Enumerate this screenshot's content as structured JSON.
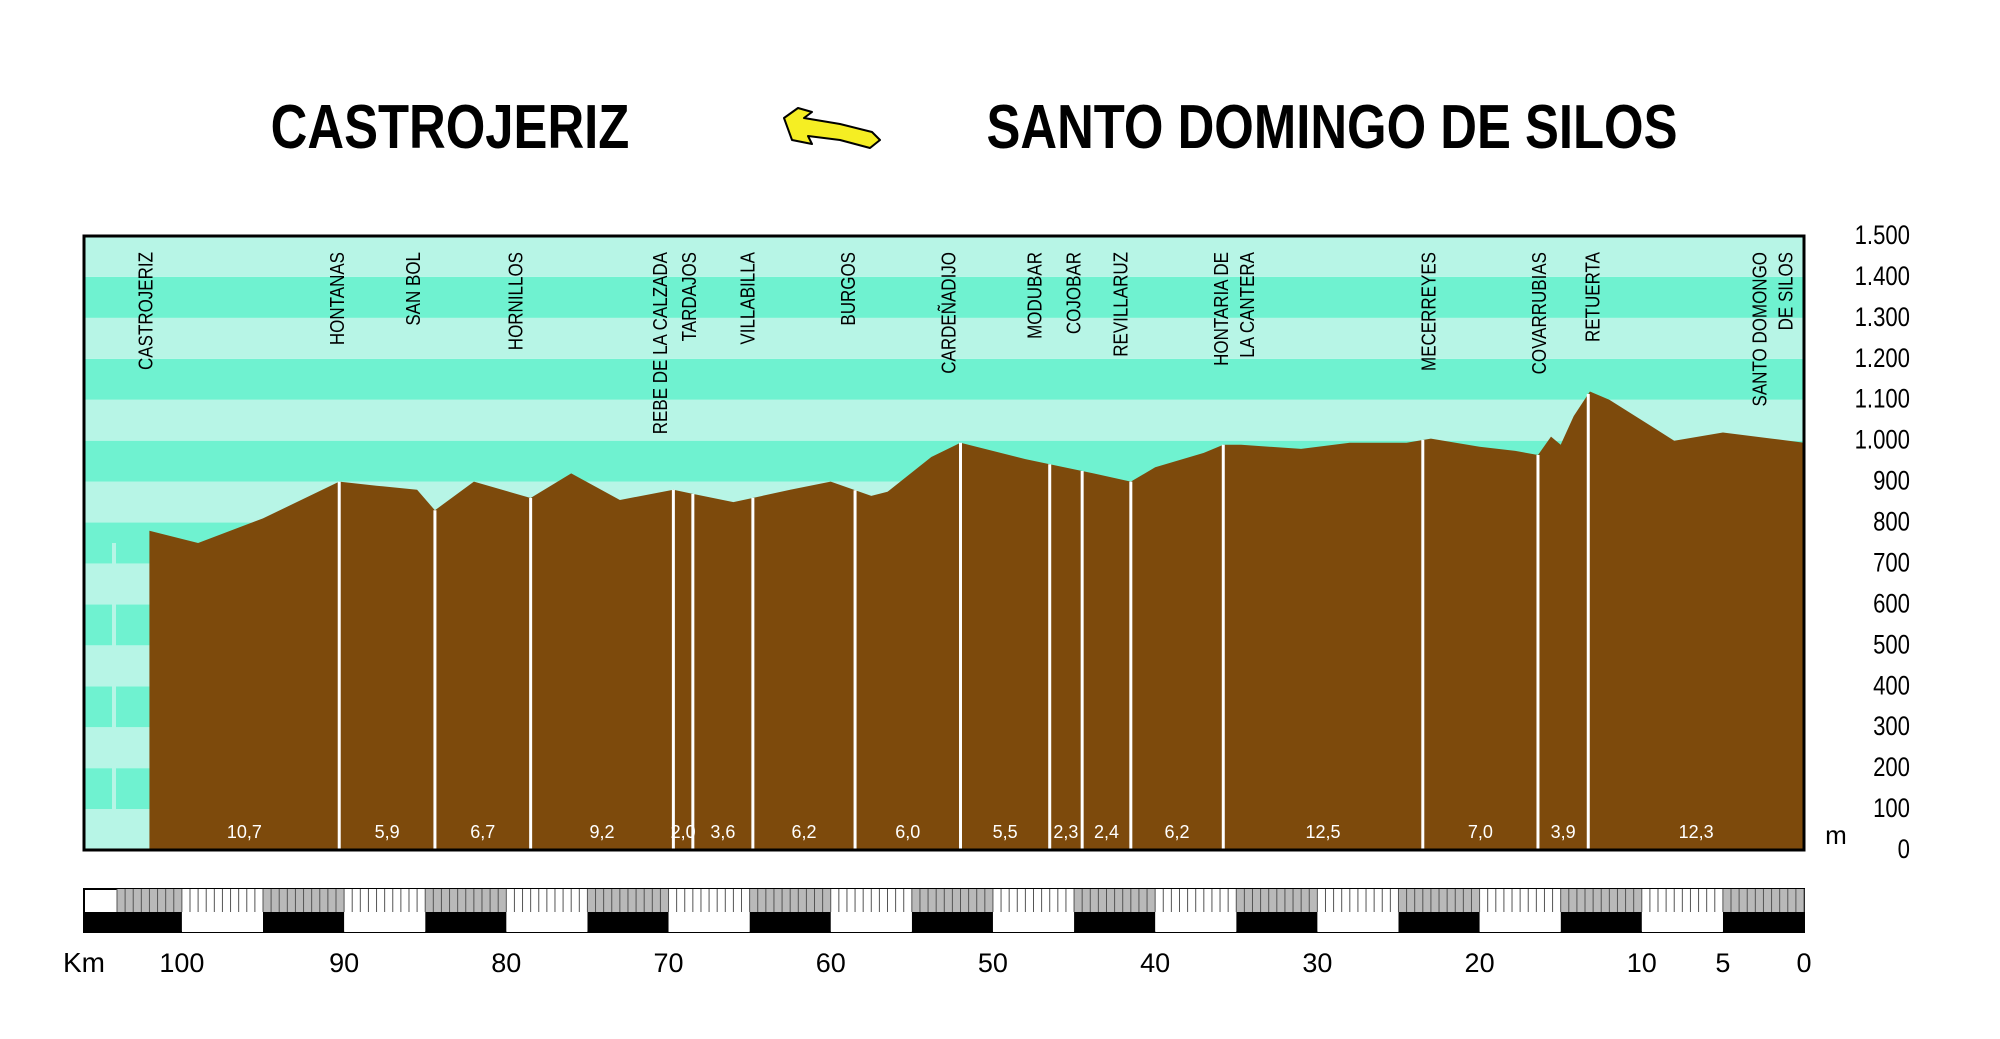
{
  "header": {
    "origin": "CASTROJERIZ",
    "destination": "SANTO DOMINGO DE SILOS",
    "arrow_color": "#f5ee23"
  },
  "colors": {
    "band_dark": "#6ff2d0",
    "band_light": "#b7f5e6",
    "terrain": "#7d4a0c",
    "segment_label": "#ffffff",
    "frame": "#000000"
  },
  "chart_data": {
    "type": "area",
    "title": "",
    "xlabel": "Km",
    "ylabel": "m",
    "xlim": [
      0,
      104
    ],
    "ylim": [
      0,
      1500
    ],
    "x_reversed": true,
    "grid": true,
    "y_ticks": [
      0,
      100,
      200,
      300,
      400,
      500,
      600,
      700,
      800,
      900,
      1000,
      1100,
      1200,
      1300,
      1400,
      1500
    ],
    "y_tick_labels": [
      "0",
      "100",
      "200",
      "300",
      "400",
      "500",
      "600",
      "700",
      "800",
      "900",
      "1.000",
      "1.100",
      "1.200",
      "1.300",
      "1.400",
      "1.500"
    ],
    "x_ticks": [
      100,
      90,
      80,
      70,
      60,
      50,
      40,
      30,
      20,
      10,
      5,
      0
    ],
    "x_tick_labels": [
      "100",
      "90",
      "80",
      "70",
      "60",
      "50",
      "40",
      "30",
      "20",
      "10",
      "5",
      "0"
    ],
    "profile": [
      [
        102,
        780
      ],
      [
        99,
        750
      ],
      [
        95,
        810
      ],
      [
        90.3,
        900
      ],
      [
        88,
        890
      ],
      [
        85.5,
        880
      ],
      [
        84.4,
        830
      ],
      [
        82,
        900
      ],
      [
        78.5,
        860
      ],
      [
        76,
        920
      ],
      [
        73,
        855
      ],
      [
        69.7,
        880
      ],
      [
        68.5,
        870
      ],
      [
        66,
        850
      ],
      [
        62.5,
        880
      ],
      [
        60,
        900
      ],
      [
        57.5,
        865
      ],
      [
        56.5,
        875
      ],
      [
        53.8,
        960
      ],
      [
        52,
        995
      ],
      [
        48,
        955
      ],
      [
        46.2,
        940
      ],
      [
        43.8,
        920
      ],
      [
        41.5,
        900
      ],
      [
        40,
        935
      ],
      [
        37,
        970
      ],
      [
        35.8,
        990
      ],
      [
        34.7,
        990
      ],
      [
        31,
        980
      ],
      [
        28,
        995
      ],
      [
        24.5,
        995
      ],
      [
        23,
        1005
      ],
      [
        20,
        985
      ],
      [
        17.8,
        975
      ],
      [
        16.4,
        965
      ],
      [
        15.6,
        1010
      ],
      [
        15,
        990
      ],
      [
        14.2,
        1060
      ],
      [
        13.2,
        1120
      ],
      [
        12,
        1100
      ],
      [
        8,
        1000
      ],
      [
        5,
        1020
      ],
      [
        2,
        1005
      ],
      [
        0,
        995
      ]
    ],
    "places": [
      {
        "name": [
          "CASTROJERIZ"
        ],
        "km": 102.3
      },
      {
        "name": [
          "HONTANAS"
        ],
        "km": 90.5
      },
      {
        "name": [
          "SAN BOL"
        ],
        "km": 85.8
      },
      {
        "name": [
          "HORNILLOS"
        ],
        "km": 79.5
      },
      {
        "name": [
          "REBE DE LA CALZADA"
        ],
        "km": 70.6
      },
      {
        "name": [
          "TARDAJOS"
        ],
        "km": 68.8
      },
      {
        "name": [
          "VILLABILLA"
        ],
        "km": 65.2
      },
      {
        "name": [
          "BURGOS"
        ],
        "km": 59.0
      },
      {
        "name": [
          "CARDEÑADIJO"
        ],
        "km": 52.8
      },
      {
        "name": [
          "MODUBAR"
        ],
        "km": 47.5
      },
      {
        "name": [
          "COJOBAR"
        ],
        "km": 45.1
      },
      {
        "name": [
          "REVILLARUZ"
        ],
        "km": 42.2
      },
      {
        "name": [
          "HONTARIA DE",
          "LA CANTERA"
        ],
        "km": 35.2
      },
      {
        "name": [
          "MECERREYES"
        ],
        "km": 23.2
      },
      {
        "name": [
          "COVARRUBIAS"
        ],
        "km": 16.4
      },
      {
        "name": [
          "RETUERTA"
        ],
        "km": 13.1
      },
      {
        "name": [
          "SANTO DOMONGO",
          "DE SILOS"
        ],
        "km": 2.0
      }
    ],
    "stops_km": [
      102,
      90.3,
      84.4,
      78.5,
      69.7,
      68.5,
      64.8,
      58.5,
      52.0,
      46.5,
      44.5,
      41.5,
      35.8,
      23.5,
      16.4,
      13.3,
      0
    ],
    "segments": [
      "10,7",
      "5,9",
      "6,7",
      "9,2",
      "2,0",
      "3,6",
      "6,2",
      "6,0",
      "5,5",
      "2,3",
      "2,4",
      "6,2",
      "12,5",
      "7,0",
      "3,9",
      "12,3"
    ]
  }
}
